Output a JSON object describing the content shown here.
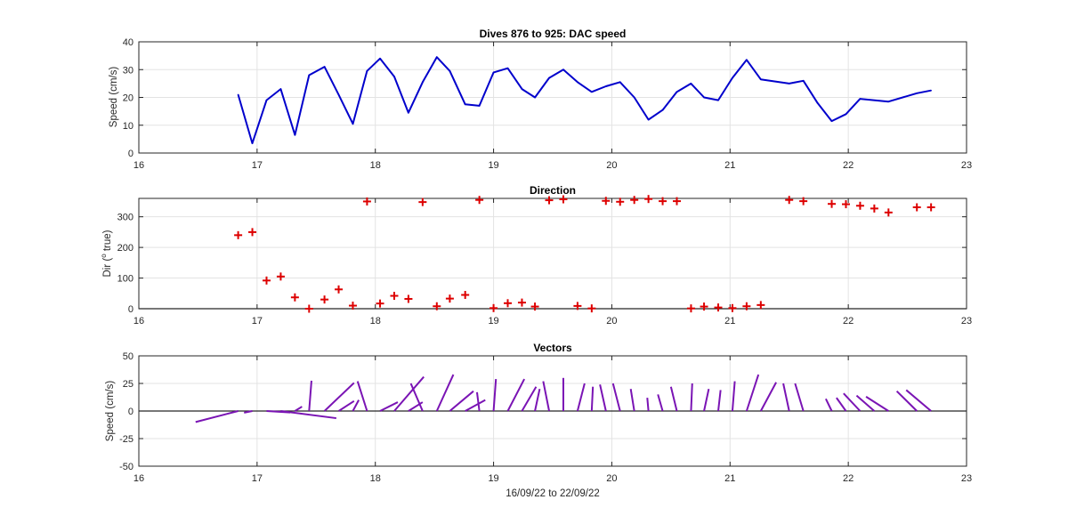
{
  "chart_data": [
    {
      "type": "line",
      "title": "Dives 876 to 925: DAC speed",
      "xlabel": "",
      "ylabel": "Speed (cm/s)",
      "xlim": [
        16,
        23
      ],
      "ylim": [
        0,
        40
      ],
      "xticks": [
        16,
        17,
        18,
        19,
        20,
        21,
        22,
        23
      ],
      "yticks": [
        0,
        10,
        20,
        30,
        40
      ],
      "grid": true,
      "series_color": "#0000cc",
      "x": [
        16.84,
        16.96,
        17.08,
        17.2,
        17.32,
        17.44,
        17.57,
        17.69,
        17.81,
        17.93,
        18.04,
        18.16,
        18.28,
        18.4,
        18.52,
        18.63,
        18.76,
        18.88,
        19.0,
        19.12,
        19.24,
        19.35,
        19.47,
        19.59,
        19.71,
        19.83,
        19.95,
        20.07,
        20.19,
        20.31,
        20.43,
        20.55,
        20.67,
        20.78,
        20.9,
        21.02,
        21.14,
        21.26,
        21.5,
        21.62,
        21.74,
        21.86,
        21.98,
        22.1,
        22.34,
        22.58,
        22.7
      ],
      "y": [
        21,
        3.5,
        19,
        23,
        6.5,
        28,
        31,
        21,
        10.5,
        29.5,
        34,
        27.5,
        14.5,
        25.5,
        34.5,
        29.5,
        17.5,
        17,
        29,
        30.5,
        23,
        20,
        27,
        30,
        25.5,
        22,
        24,
        25.5,
        20,
        12,
        15.5,
        22,
        25,
        20,
        19,
        27,
        33.5,
        26.5,
        25,
        26,
        18,
        11.5,
        14,
        19.5,
        18.5,
        21.5,
        22.5
      ]
    },
    {
      "type": "scatter",
      "title": "Direction",
      "xlabel": "",
      "ylabel": "Dir (",
      "ylabel_sup": "o",
      "ylabel_rest": " true)",
      "xlim": [
        16,
        23
      ],
      "ylim": [
        0,
        360
      ],
      "xticks": [
        16,
        17,
        18,
        19,
        20,
        21,
        22,
        23
      ],
      "yticks": [
        0,
        100,
        200,
        300
      ],
      "grid": true,
      "marker": "+",
      "marker_color": "#dd0000",
      "x": [
        16.84,
        16.96,
        17.08,
        17.2,
        17.32,
        17.44,
        17.57,
        17.69,
        17.81,
        17.93,
        18.04,
        18.16,
        18.28,
        18.4,
        18.52,
        18.63,
        18.76,
        18.88,
        19.0,
        19.12,
        19.24,
        19.35,
        19.47,
        19.59,
        19.71,
        19.83,
        19.95,
        20.07,
        20.19,
        20.31,
        20.43,
        20.55,
        20.67,
        20.78,
        20.9,
        21.02,
        21.14,
        21.26,
        21.5,
        21.62,
        21.86,
        21.98,
        22.1,
        22.22,
        22.34,
        22.58,
        22.7
      ],
      "y": [
        240,
        250,
        92,
        105,
        37,
        0,
        30,
        63,
        10,
        350,
        17,
        42,
        32,
        348,
        8,
        33,
        45,
        355,
        2,
        18,
        20,
        7,
        354,
        357,
        9,
        1,
        352,
        349,
        355,
        358,
        351,
        351,
        1,
        7,
        4,
        2,
        8,
        12,
        355,
        351,
        342,
        341,
        336,
        327,
        314,
        331,
        331
      ]
    },
    {
      "type": "line",
      "chart_kind": "vector-stick-plot",
      "title": "Vectors",
      "xlabel": "16/09/22 to 22/09/22",
      "ylabel": "Speed (cm/s)",
      "xlim": [
        16,
        23
      ],
      "ylim": [
        -50,
        50
      ],
      "xticks": [
        16,
        17,
        18,
        19,
        20,
        21,
        22,
        23
      ],
      "yticks": [
        -50,
        -25,
        0,
        25,
        50
      ],
      "grid": true,
      "stick_color": "#7a14b4",
      "sticks": [
        {
          "x": 16.84,
          "dx": -0.36,
          "dy": -10
        },
        {
          "x": 16.96,
          "dx": -0.07,
          "dy": -1.5
        },
        {
          "x": 17.08,
          "dx": 0.2,
          "dy": -1.3
        },
        {
          "x": 17.2,
          "dx": 0.47,
          "dy": -6.5
        },
        {
          "x": 17.32,
          "dx": 0.06,
          "dy": 4
        },
        {
          "x": 17.44,
          "dx": 0.02,
          "dy": 27.5
        },
        {
          "x": 17.57,
          "dx": 0.25,
          "dy": 25.5
        },
        {
          "x": 17.69,
          "dx": 0.13,
          "dy": 9
        },
        {
          "x": 17.81,
          "dx": 0.05,
          "dy": 10
        },
        {
          "x": 17.93,
          "dx": -0.08,
          "dy": 27
        },
        {
          "x": 18.04,
          "dx": 0.15,
          "dy": 8
        },
        {
          "x": 18.16,
          "dx": 0.25,
          "dy": 31
        },
        {
          "x": 18.28,
          "dx": 0.12,
          "dy": 8
        },
        {
          "x": 18.4,
          "dx": -0.1,
          "dy": 25
        },
        {
          "x": 18.52,
          "dx": 0.14,
          "dy": 33
        },
        {
          "x": 18.63,
          "dx": 0.2,
          "dy": 18
        },
        {
          "x": 18.76,
          "dx": 0.17,
          "dy": 10
        },
        {
          "x": 18.88,
          "dx": -0.02,
          "dy": 17
        },
        {
          "x": 19.0,
          "dx": 0.02,
          "dy": 29
        },
        {
          "x": 19.12,
          "dx": 0.14,
          "dy": 29
        },
        {
          "x": 19.24,
          "dx": 0.12,
          "dy": 22
        },
        {
          "x": 19.35,
          "dx": 0.04,
          "dy": 20
        },
        {
          "x": 19.47,
          "dx": -0.05,
          "dy": 27
        },
        {
          "x": 19.59,
          "dx": 0.0,
          "dy": 30
        },
        {
          "x": 19.71,
          "dx": 0.06,
          "dy": 25
        },
        {
          "x": 19.83,
          "dx": 0.01,
          "dy": 22
        },
        {
          "x": 19.95,
          "dx": -0.05,
          "dy": 24
        },
        {
          "x": 20.07,
          "dx": -0.06,
          "dy": 25
        },
        {
          "x": 20.19,
          "dx": -0.03,
          "dy": 20
        },
        {
          "x": 20.31,
          "dx": -0.01,
          "dy": 12
        },
        {
          "x": 20.43,
          "dx": -0.04,
          "dy": 15
        },
        {
          "x": 20.55,
          "dx": -0.05,
          "dy": 22
        },
        {
          "x": 20.67,
          "dx": 0.01,
          "dy": 25
        },
        {
          "x": 20.78,
          "dx": 0.04,
          "dy": 20
        },
        {
          "x": 20.9,
          "dx": 0.02,
          "dy": 19
        },
        {
          "x": 21.02,
          "dx": 0.02,
          "dy": 27
        },
        {
          "x": 21.14,
          "dx": 0.1,
          "dy": 33
        },
        {
          "x": 21.26,
          "dx": 0.13,
          "dy": 26
        },
        {
          "x": 21.5,
          "dx": -0.05,
          "dy": 25
        },
        {
          "x": 21.62,
          "dx": -0.07,
          "dy": 25
        },
        {
          "x": 21.86,
          "dx": -0.05,
          "dy": 11
        },
        {
          "x": 21.98,
          "dx": -0.08,
          "dy": 12
        },
        {
          "x": 22.1,
          "dx": -0.14,
          "dy": 16
        },
        {
          "x": 22.22,
          "dx": -0.15,
          "dy": 14
        },
        {
          "x": 22.34,
          "dx": -0.19,
          "dy": 13
        },
        {
          "x": 22.58,
          "dx": -0.17,
          "dy": 18
        },
        {
          "x": 22.7,
          "dx": -0.21,
          "dy": 19
        }
      ]
    }
  ]
}
